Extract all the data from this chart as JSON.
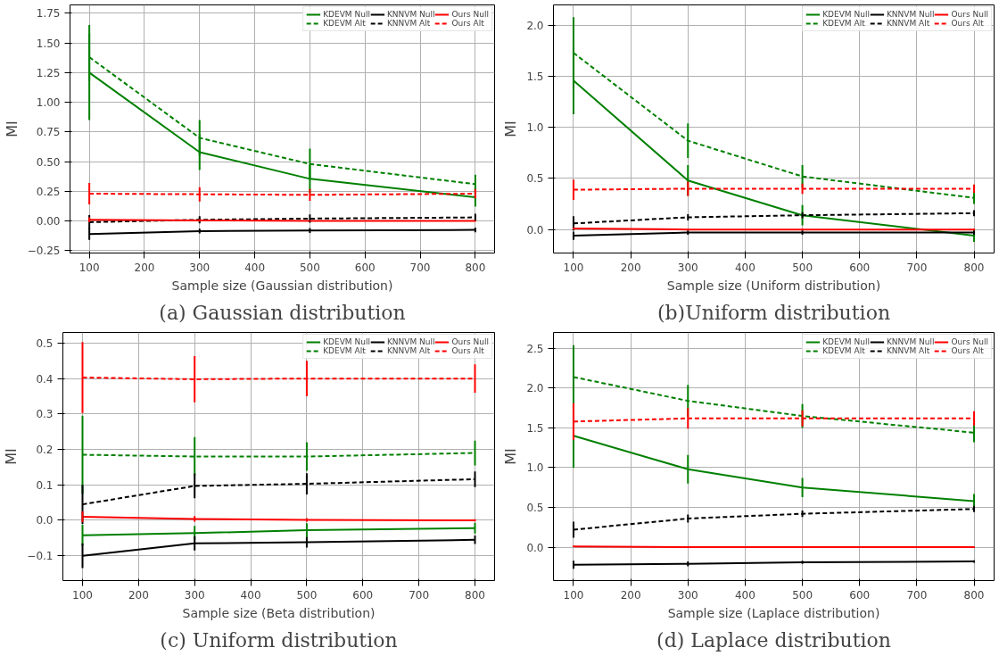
{
  "chart_data": [
    {
      "type": "line",
      "title": "(a) Gaussian distribution",
      "xlabel": "Sample size (Gaussian distribution)",
      "ylabel": "MI",
      "x": [
        100,
        300,
        500,
        800
      ],
      "xlim": [
        65,
        835
      ],
      "xticks": [
        100,
        200,
        300,
        400,
        500,
        600,
        700,
        800
      ],
      "ylim": [
        -0.27,
        1.82
      ],
      "yticks": [
        {
          "value": -0.25,
          "label": "−0.25"
        },
        {
          "value": 0,
          "label": "0.00"
        },
        {
          "value": 0.25,
          "label": "0.25"
        },
        {
          "value": 0.5,
          "label": "0.50"
        },
        {
          "value": 0.75,
          "label": "0.75"
        },
        {
          "value": 1,
          "label": "1.00"
        },
        {
          "value": 1.25,
          "label": "1.25"
        },
        {
          "value": 1.5,
          "label": "1.50"
        },
        {
          "value": 1.75,
          "label": "1.75"
        }
      ],
      "grid": true,
      "legend": "top right",
      "series": [
        {
          "name": "KDEVM Null",
          "color": "#008000",
          "line_style": "solid",
          "values": [
            1.25,
            0.58,
            0.355,
            0.2
          ],
          "errors": [
            0.4,
            0.15,
            0.12,
            0.08
          ]
        },
        {
          "name": "KDEVM Alt",
          "color": "#008000",
          "line_style": "dashed",
          "values": [
            1.38,
            0.7,
            0.48,
            0.31
          ],
          "errors": [
            0.2,
            0.15,
            0.13,
            0.08
          ]
        },
        {
          "name": "KNNVM Null",
          "color": "#000000",
          "line_style": "solid",
          "values": [
            -0.11,
            -0.085,
            -0.08,
            -0.075
          ],
          "errors": [
            0.05,
            0.02,
            0.02,
            0.02
          ]
        },
        {
          "name": "KNNVM Alt",
          "color": "#000000",
          "line_style": "dashed",
          "values": [
            -0.01,
            0.01,
            0.02,
            0.03
          ],
          "errors": [
            0.06,
            0.03,
            0.035,
            0.03
          ]
        },
        {
          "name": "Ours Null",
          "color": "#ff0000",
          "line_style": "solid",
          "values": [
            0.01,
            0.005,
            0.0,
            0.0
          ],
          "errors": [
            0.02,
            0.01,
            0.005,
            0.005
          ]
        },
        {
          "name": "Ours Alt",
          "color": "#ff0000",
          "line_style": "dashed",
          "values": [
            0.23,
            0.225,
            0.22,
            0.23
          ],
          "errors": [
            0.09,
            0.06,
            0.05,
            0.04
          ]
        }
      ]
    },
    {
      "type": "line",
      "title": "(b)Uniform distribution",
      "xlabel": "Sample size (Uniform distribution)",
      "ylabel": "MI",
      "x": [
        100,
        300,
        500,
        800
      ],
      "xlim": [
        65,
        835
      ],
      "xticks": [
        100,
        200,
        300,
        400,
        500,
        600,
        700,
        800
      ],
      "ylim": [
        -0.23,
        2.2
      ],
      "yticks": [
        {
          "value": 0,
          "label": "0.0"
        },
        {
          "value": 0.5,
          "label": "0.5"
        },
        {
          "value": 1,
          "label": "1.0"
        },
        {
          "value": 1.5,
          "label": "1.5"
        },
        {
          "value": 2,
          "label": "2.0"
        }
      ],
      "grid": true,
      "legend": "top right",
      "series": [
        {
          "name": "KDEVM Null",
          "color": "#008000",
          "line_style": "solid",
          "values": [
            1.46,
            0.48,
            0.14,
            -0.06
          ],
          "errors": [
            0.33,
            0.15,
            0.1,
            0.06
          ]
        },
        {
          "name": "KDEVM Alt",
          "color": "#008000",
          "line_style": "dashed",
          "values": [
            1.73,
            0.87,
            0.52,
            0.31
          ],
          "errors": [
            0.35,
            0.17,
            0.11,
            0.06
          ]
        },
        {
          "name": "KNNVM Null",
          "color": "#000000",
          "line_style": "solid",
          "values": [
            -0.06,
            -0.03,
            -0.03,
            -0.03
          ],
          "errors": [
            0.04,
            0.02,
            0.02,
            0.02
          ]
        },
        {
          "name": "KNNVM Alt",
          "color": "#000000",
          "line_style": "dashed",
          "values": [
            0.06,
            0.12,
            0.14,
            0.16
          ],
          "errors": [
            0.07,
            0.03,
            0.03,
            0.03
          ]
        },
        {
          "name": "Ours Null",
          "color": "#ff0000",
          "line_style": "solid",
          "values": [
            0.01,
            0.0,
            0.0,
            0.0
          ],
          "errors": [
            0.01,
            0.01,
            0.01,
            0.01
          ]
        },
        {
          "name": "Ours Alt",
          "color": "#ff0000",
          "line_style": "dashed",
          "values": [
            0.39,
            0.4,
            0.4,
            0.4
          ],
          "errors": [
            0.1,
            0.07,
            0.05,
            0.04
          ]
        }
      ]
    },
    {
      "type": "line",
      "title": "(c) Uniform distribution",
      "xlabel": "Sample size (Beta distribution)",
      "ylabel": "MI",
      "x": [
        100,
        300,
        500,
        800
      ],
      "xlim": [
        65,
        835
      ],
      "xticks": [
        100,
        200,
        300,
        400,
        500,
        600,
        700,
        800
      ],
      "ylim": [
        -0.17,
        0.53
      ],
      "yticks": [
        {
          "value": -0.1,
          "label": "−0.1"
        },
        {
          "value": 0,
          "label": "0.0"
        },
        {
          "value": 0.1,
          "label": "0.1"
        },
        {
          "value": 0.2,
          "label": "0.2"
        },
        {
          "value": 0.3,
          "label": "0.3"
        },
        {
          "value": 0.4,
          "label": "0.4"
        },
        {
          "value": 0.5,
          "label": "0.5"
        }
      ],
      "grid": true,
      "legend": "top right",
      "series": [
        {
          "name": "KDEVM Null",
          "color": "#008000",
          "line_style": "solid",
          "values": [
            -0.042,
            -0.036,
            -0.028,
            -0.022
          ],
          "errors": [
            0.03,
            0.02,
            0.02,
            0.015
          ]
        },
        {
          "name": "KDEVM Alt",
          "color": "#008000",
          "line_style": "dashed",
          "values": [
            0.185,
            0.18,
            0.18,
            0.19
          ],
          "errors": [
            0.11,
            0.055,
            0.04,
            0.035
          ]
        },
        {
          "name": "KNNVM Null",
          "color": "#000000",
          "line_style": "solid",
          "values": [
            -0.1,
            -0.065,
            -0.062,
            -0.055
          ],
          "errors": [
            0.035,
            0.02,
            0.015,
            0.012
          ]
        },
        {
          "name": "KNNVM Alt",
          "color": "#000000",
          "line_style": "dashed",
          "values": [
            0.045,
            0.097,
            0.103,
            0.116
          ],
          "errors": [
            0.055,
            0.035,
            0.03,
            0.022
          ]
        },
        {
          "name": "Ours Null",
          "color": "#ff0000",
          "line_style": "solid",
          "values": [
            0.01,
            0.004,
            0.001,
            0.0
          ],
          "errors": [
            0.015,
            0.008,
            0.005,
            0.003
          ]
        },
        {
          "name": "Ours Alt",
          "color": "#ff0000",
          "line_style": "dashed",
          "values": [
            0.403,
            0.398,
            0.4,
            0.4
          ],
          "errors": [
            0.1,
            0.065,
            0.05,
            0.04
          ]
        }
      ]
    },
    {
      "type": "line",
      "title": "(d) Laplace distribution",
      "xlabel": "Sample size (Laplace distribution)",
      "ylabel": "MI",
      "x": [
        100,
        300,
        500,
        800
      ],
      "xlim": [
        65,
        835
      ],
      "xticks": [
        100,
        200,
        300,
        400,
        500,
        600,
        700,
        800
      ],
      "ylim": [
        -0.42,
        2.7
      ],
      "yticks": [
        {
          "value": 0,
          "label": "0.0"
        },
        {
          "value": 0.5,
          "label": "0.5"
        },
        {
          "value": 1,
          "label": "1.0"
        },
        {
          "value": 1.5,
          "label": "1.5"
        },
        {
          "value": 2,
          "label": "2.0"
        },
        {
          "value": 2.5,
          "label": "2.5"
        }
      ],
      "grid": true,
      "legend": "top right",
      "series": [
        {
          "name": "KDEVM Null",
          "color": "#008000",
          "line_style": "solid",
          "values": [
            1.4,
            0.98,
            0.75,
            0.58
          ],
          "errors": [
            0.4,
            0.18,
            0.12,
            0.09
          ]
        },
        {
          "name": "KDEVM Alt",
          "color": "#008000",
          "line_style": "dashed",
          "values": [
            2.14,
            1.84,
            1.65,
            1.44
          ],
          "errors": [
            0.4,
            0.2,
            0.15,
            0.12
          ]
        },
        {
          "name": "KNNVM Null",
          "color": "#000000",
          "line_style": "solid",
          "values": [
            -0.22,
            -0.21,
            -0.19,
            -0.18
          ],
          "errors": [
            0.05,
            0.03,
            0.02,
            0.015
          ]
        },
        {
          "name": "KNNVM Alt",
          "color": "#000000",
          "line_style": "dashed",
          "values": [
            0.22,
            0.36,
            0.42,
            0.48
          ],
          "errors": [
            0.1,
            0.05,
            0.04,
            0.04
          ]
        },
        {
          "name": "Ours Null",
          "color": "#ff0000",
          "line_style": "solid",
          "values": [
            0.01,
            0.0,
            0.0,
            0.0
          ],
          "errors": [
            0.01,
            0.01,
            0.01,
            0.01
          ]
        },
        {
          "name": "Ours Alt",
          "color": "#ff0000",
          "line_style": "dashed",
          "values": [
            1.58,
            1.62,
            1.62,
            1.62
          ],
          "errors": [
            0.23,
            0.13,
            0.1,
            0.09
          ]
        }
      ]
    }
  ]
}
